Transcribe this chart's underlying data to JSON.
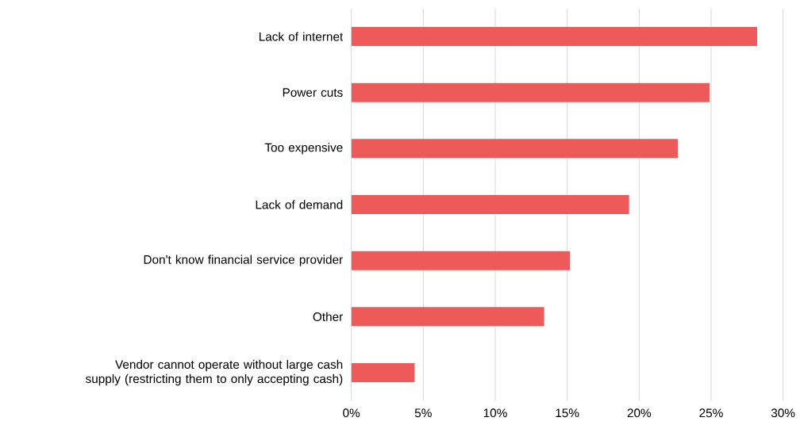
{
  "chart_data": {
    "type": "bar",
    "orientation": "horizontal",
    "categories": [
      "Lack of internet",
      "Power cuts",
      "Too expensive",
      "Lack of demand",
      "Don't know financial service provider",
      "Other",
      "Vendor cannot operate without large cash supply (restricting them to only accepting cash)"
    ],
    "values": [
      28.2,
      24.9,
      22.7,
      19.3,
      15.2,
      13.4,
      4.4
    ],
    "color": "#ee5a5a",
    "xlim": [
      0,
      30
    ],
    "xticks": [
      {
        "value": 0,
        "label": "0%"
      },
      {
        "value": 5,
        "label": "5%"
      },
      {
        "value": 10,
        "label": "10%"
      },
      {
        "value": 15,
        "label": "15%"
      },
      {
        "value": 20,
        "label": "20%"
      },
      {
        "value": 25,
        "label": "25%"
      },
      {
        "value": 30,
        "label": "30%"
      }
    ],
    "grid": "x"
  }
}
